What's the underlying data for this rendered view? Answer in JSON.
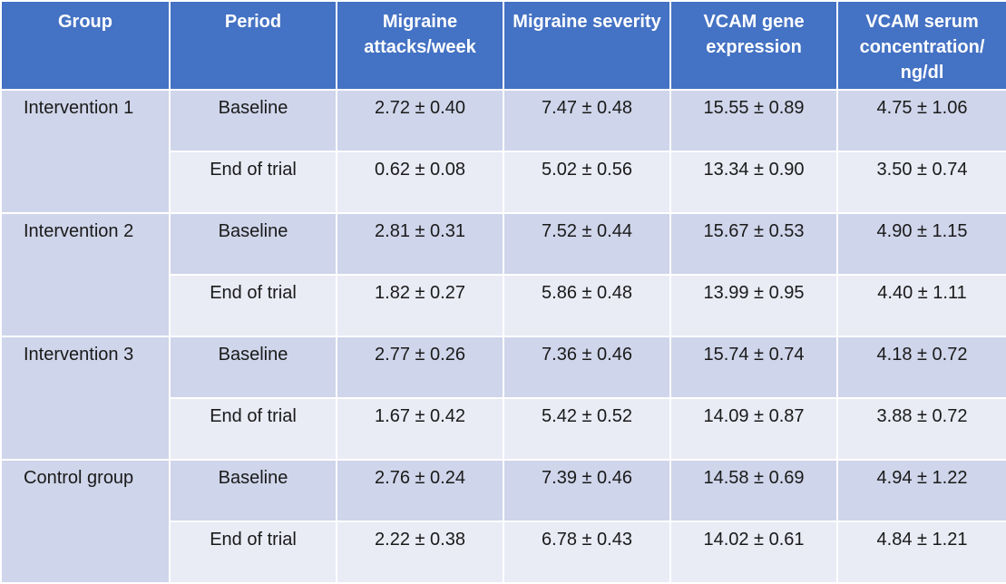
{
  "table": {
    "headers": {
      "group": "Group",
      "period": "Period",
      "attacks": "Migraine attacks/week",
      "severity": "Migraine severity",
      "gene": "VCAM gene expression",
      "serum": "VCAM serum concentration/ ng/dl"
    },
    "groups": [
      {
        "name": "Intervention 1",
        "rows": [
          {
            "period": "Baseline",
            "attacks": "2.72 ± 0.40",
            "severity": "7.47 ± 0.48",
            "gene": "15.55 ± 0.89",
            "serum": "4.75 ± 1.06"
          },
          {
            "period": "End of trial",
            "attacks": "0.62 ± 0.08",
            "severity": "5.02 ± 0.56",
            "gene": "13.34 ± 0.90",
            "serum": "3.50 ± 0.74"
          }
        ]
      },
      {
        "name": "Intervention 2",
        "rows": [
          {
            "period": "Baseline",
            "attacks": "2.81 ± 0.31",
            "severity": "7.52 ± 0.44",
            "gene": "15.67 ± 0.53",
            "serum": "4.90 ± 1.15"
          },
          {
            "period": "End of trial",
            "attacks": "1.82 ± 0.27",
            "severity": "5.86 ± 0.48",
            "gene": "13.99 ± 0.95",
            "serum": "4.40 ± 1.11"
          }
        ]
      },
      {
        "name": "Intervention 3",
        "rows": [
          {
            "period": "Baseline",
            "attacks": "2.77 ± 0.26",
            "severity": "7.36 ± 0.46",
            "gene": "15.74 ± 0.74",
            "serum": "4.18 ± 0.72"
          },
          {
            "period": "End of trial",
            "attacks": "1.67 ± 0.42",
            "severity": "5.42 ± 0.52",
            "gene": "14.09 ± 0.87",
            "serum": "3.88 ± 0.72"
          }
        ]
      },
      {
        "name": "Control group",
        "rows": [
          {
            "period": "Baseline",
            "attacks": "2.76 ± 0.24",
            "severity": "7.39 ± 0.46",
            "gene": "14.58 ± 0.69",
            "serum": "4.94 ± 1.22"
          },
          {
            "period": "End of trial",
            "attacks": "2.22 ± 0.38",
            "severity": "6.78 ± 0.43",
            "gene": "14.02 ± 0.61",
            "serum": "4.84 ± 1.21"
          }
        ]
      }
    ]
  }
}
